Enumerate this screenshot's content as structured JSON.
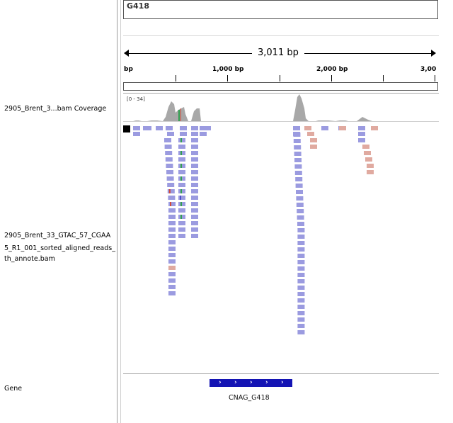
{
  "chromosome": {
    "name": "G418"
  },
  "ruler": {
    "span_label": "3,011 bp",
    "ticks": [
      {
        "label": "bp"
      },
      {
        "label": "1,000 bp"
      },
      {
        "label": "2,000 bp"
      },
      {
        "label": "3,00"
      }
    ]
  },
  "tracks": {
    "coverage": {
      "label": "2905_Brent_3...bam Coverage",
      "range": "[0 - 34]"
    },
    "alignment": {
      "label_lines": [
        "2905_Brent_33_GTAC_57_CGAA",
        "5_R1_001_sorted_aligned_reads_",
        "th_annote.bam"
      ]
    },
    "gene": {
      "label": "Gene",
      "feature_name": "CNAG_G418"
    }
  },
  "colors": {
    "read_forward": "#9b9be0",
    "read_reverse": "#e0aaa0",
    "coverage": "#a8a8a8",
    "gene": "#1414b4"
  },
  "icons": {
    "gene_strand": "chevron-right-icon",
    "selection_marker": "square-icon"
  }
}
